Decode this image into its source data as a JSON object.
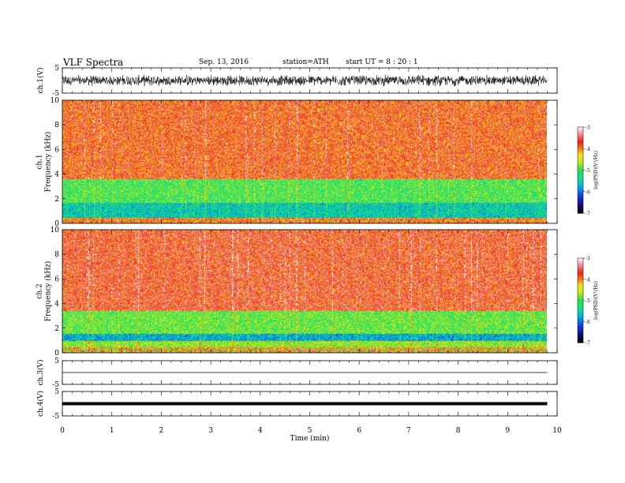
{
  "header": {
    "title": "VLF  Spectra",
    "date": "Sep. 13,  2016",
    "station": "station=ATH",
    "start": "start  UT  =   8 : 20 : 1"
  },
  "colors": {
    "spectrogram_low": "#1d2ea8",
    "spectrogram_mid": "#1ee07a",
    "spectrogram_high": "#f22a17",
    "waveform": "#000000"
  },
  "chart_data": [
    {
      "type": "line",
      "panel": "ch1-waveform",
      "ylabel": "ch.1(V)",
      "ylim": [
        -5,
        5
      ],
      "yticks": [
        "5",
        "-5"
      ],
      "xlim": [
        0,
        10
      ],
      "signal_amplitude_v": [
        -1.5,
        1.5
      ]
    },
    {
      "type": "heatmap",
      "panel": "ch1-spectrogram",
      "ylabel": "ch.1\nFrequency  (kHz)",
      "ylim": [
        0,
        10
      ],
      "yticks": [
        "0",
        "2",
        "4",
        "6",
        "8",
        "10"
      ],
      "xlim": [
        0,
        9.8
      ],
      "bands_khz": [
        {
          "from": 0,
          "to": 0.5,
          "level": -4.2
        },
        {
          "from": 0.5,
          "to": 1.7,
          "level": -5.5
        },
        {
          "from": 1.7,
          "to": 3.6,
          "level": -5.0
        },
        {
          "from": 3.6,
          "to": 10,
          "level": -3.8
        }
      ]
    },
    {
      "type": "heatmap",
      "panel": "ch2-spectrogram",
      "ylabel": "ch.2\nFrequency  (kHz)",
      "ylim": [
        0,
        10
      ],
      "yticks": [
        "0",
        "2",
        "4",
        "6",
        "8",
        "10"
      ],
      "xlim": [
        0,
        9.8
      ],
      "bands_khz": [
        {
          "from": 0,
          "to": 1.0,
          "level": -4.8
        },
        {
          "from": 1.0,
          "to": 1.6,
          "level": -5.8
        },
        {
          "from": 1.6,
          "to": 3.4,
          "level": -5.0
        },
        {
          "from": 3.4,
          "to": 10,
          "level": -3.8
        }
      ]
    },
    {
      "type": "line",
      "panel": "ch3-waveform",
      "ylabel": "ch.3(V)",
      "ylim": [
        -5,
        5
      ],
      "yticks": [
        "5",
        "-5"
      ],
      "xlim": [
        0,
        9.8
      ],
      "constant_v": 0
    },
    {
      "type": "line",
      "panel": "ch4-waveform",
      "ylabel": "ch.4(V)",
      "ylim": [
        -5,
        5
      ],
      "yticks": [
        "5",
        "-5"
      ],
      "xlim": [
        0,
        9.8
      ],
      "constant_v": 0
    },
    {
      "type": "colorbar",
      "label": "log(PSD)(V²/Hz)",
      "range": [
        -7,
        -3
      ],
      "ticks": [
        "-3",
        "-4",
        "-5",
        "-6",
        "-7"
      ]
    }
  ],
  "xaxis": {
    "label": "Time  (min)",
    "range": [
      0,
      10
    ],
    "ticks": [
      "0",
      "1",
      "2",
      "3",
      "4",
      "5",
      "6",
      "7",
      "8",
      "9",
      "10"
    ]
  }
}
